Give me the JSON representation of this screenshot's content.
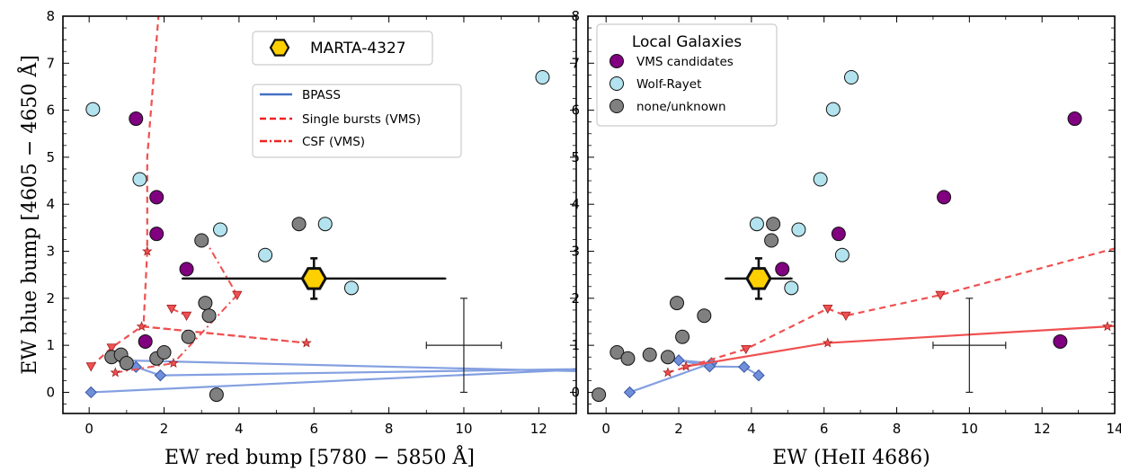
{
  "chart_data": [
    {
      "type": "scatter",
      "xlabel": "EW red bump [5780 − 5850 Å]",
      "ylabel": "EW blue bump [4605 − 4650 Å]",
      "xlim": [
        -0.7,
        13
      ],
      "ylim": [
        -0.45,
        8
      ],
      "xticks": [
        0,
        2,
        4,
        6,
        8,
        10,
        12
      ],
      "yticks": [
        0,
        1,
        2,
        3,
        4,
        5,
        6,
        7,
        8
      ],
      "legend_top": {
        "label": "MARTA-4327"
      },
      "legend_models": [
        {
          "label": "BPASS",
          "style": "solid",
          "color": "#4472c4"
        },
        {
          "label": "Single bursts (VMS)",
          "style": "dashed",
          "color": "#ee2222"
        },
        {
          "label": "CSF (VMS)",
          "style": "dashdot",
          "color": "#ee2222"
        }
      ],
      "series": [
        {
          "name": "VMS candidates",
          "color": "#800080",
          "points": [
            [
              1.25,
              5.82
            ],
            [
              1.8,
              4.15
            ],
            [
              1.8,
              3.37
            ],
            [
              2.6,
              2.62
            ],
            [
              1.5,
              1.08
            ]
          ]
        },
        {
          "name": "Wolf-Rayet",
          "color": "#b3e3ee",
          "points": [
            [
              0.1,
              6.02
            ],
            [
              1.35,
              4.53
            ],
            [
              3.5,
              3.46
            ],
            [
              4.7,
              2.92
            ],
            [
              6.3,
              3.58
            ],
            [
              7.0,
              2.22
            ],
            [
              12.1,
              6.7
            ]
          ]
        },
        {
          "name": "none/unknown",
          "color": "#808080",
          "points": [
            [
              0.6,
              0.75
            ],
            [
              0.85,
              0.8
            ],
            [
              1.0,
              0.62
            ],
            [
              1.8,
              0.72
            ],
            [
              2.0,
              0.85
            ],
            [
              2.65,
              1.18
            ],
            [
              3.1,
              1.9
            ],
            [
              3.2,
              1.63
            ],
            [
              3.4,
              -0.05
            ],
            [
              3.0,
              3.23
            ],
            [
              5.6,
              3.58
            ]
          ]
        }
      ],
      "bpass": [
        [
          0.05,
          0.0
        ],
        [
          13.5,
          0.5
        ],
        [
          1.9,
          0.36
        ],
        [
          1.25,
          0.54
        ],
        [
          0.9,
          0.68
        ],
        [
          13.5,
          0.44
        ]
      ],
      "bpass_markers": [
        [
          0.05,
          0.0
        ],
        [
          1.9,
          0.36
        ],
        [
          1.25,
          0.54
        ],
        [
          0.9,
          0.68
        ]
      ],
      "single_bursts": [
        [
          0.05,
          0.55
        ],
        [
          0.6,
          0.95
        ],
        [
          1.4,
          1.4
        ],
        [
          5.8,
          1.05
        ],
        [
          1.45,
          1.4
        ],
        [
          1.55,
          3.0
        ],
        [
          1.55,
          5.0
        ],
        [
          1.85,
          8.0
        ]
      ],
      "single_bursts_tri": [
        [
          0.05,
          0.55
        ],
        [
          0.6,
          0.95
        ]
      ],
      "single_bursts_star": [
        [
          1.4,
          1.4
        ],
        [
          5.8,
          1.05
        ],
        [
          1.55,
          3.0
        ]
      ],
      "csf": [
        [
          0.7,
          0.42
        ],
        [
          2.25,
          0.62
        ],
        [
          3.95,
          2.07
        ],
        [
          3.1,
          3.23
        ]
      ],
      "csf_tri": [
        [
          2.2,
          1.78
        ],
        [
          2.6,
          1.63
        ],
        [
          3.95,
          2.07
        ]
      ],
      "csf_star": [
        [
          0.7,
          0.42
        ],
        [
          2.25,
          0.62
        ]
      ],
      "csf_connect": [
        [
          2.2,
          1.78
        ],
        [
          2.6,
          1.63
        ]
      ],
      "marta": {
        "x": 6.0,
        "y": 2.42,
        "xerr": [
          3.5,
          3.5
        ],
        "yerr": [
          0.43,
          0.43
        ]
      },
      "error_cross": {
        "x": 10,
        "y": 1.0,
        "xerr": 1.0,
        "yerr": 1.0
      }
    },
    {
      "type": "scatter",
      "xlabel": "EW (HeII 4686)",
      "ylabel": "",
      "xlim": [
        -0.5,
        14
      ],
      "ylim": [
        -0.45,
        8
      ],
      "xticks": [
        0,
        2,
        4,
        6,
        8,
        10,
        12,
        14
      ],
      "yticks": [
        0,
        1,
        2,
        3,
        4,
        5,
        6,
        7,
        8
      ],
      "legend_title": "Local Galaxies",
      "series": [
        {
          "name": "VMS candidates",
          "color": "#800080",
          "points": [
            [
              12.9,
              5.82
            ],
            [
              9.3,
              4.15
            ],
            [
              6.4,
              3.37
            ],
            [
              4.85,
              2.62
            ],
            [
              12.5,
              1.08
            ]
          ]
        },
        {
          "name": "Wolf-Rayet",
          "color": "#b3e3ee",
          "points": [
            [
              6.75,
              6.7
            ],
            [
              6.25,
              6.02
            ],
            [
              5.9,
              4.53
            ],
            [
              4.15,
              3.58
            ],
            [
              5.3,
              3.46
            ],
            [
              6.5,
              2.92
            ],
            [
              5.1,
              2.22
            ]
          ]
        },
        {
          "name": "none/unknown",
          "color": "#808080",
          "points": [
            [
              4.6,
              3.58
            ],
            [
              4.55,
              3.23
            ],
            [
              1.95,
              1.9
            ],
            [
              2.7,
              1.63
            ],
            [
              2.1,
              1.18
            ],
            [
              0.3,
              0.85
            ],
            [
              0.6,
              0.72
            ],
            [
              1.2,
              0.8
            ],
            [
              1.7,
              0.75
            ],
            [
              -0.2,
              -0.05
            ]
          ]
        }
      ],
      "bpass": [
        [
          0.65,
          0.0
        ],
        [
          2.9,
          0.62
        ],
        [
          2.0,
          0.68
        ],
        [
          2.85,
          0.55
        ],
        [
          3.8,
          0.54
        ],
        [
          4.2,
          0.36
        ]
      ],
      "bpass_markers": [
        [
          0.65,
          0.0
        ],
        [
          2.9,
          0.62
        ],
        [
          2.0,
          0.68
        ],
        [
          2.85,
          0.55
        ],
        [
          3.8,
          0.54
        ],
        [
          4.2,
          0.36
        ]
      ],
      "single_bursts": [
        [
          1.7,
          0.42
        ],
        [
          3.85,
          0.92
        ],
        [
          6.1,
          1.78
        ],
        [
          6.6,
          1.63
        ],
        [
          9.2,
          2.07
        ],
        [
          14.2,
          3.1
        ]
      ],
      "single_bursts_tri": [
        [
          3.85,
          0.92
        ],
        [
          6.1,
          1.78
        ],
        [
          6.6,
          1.63
        ],
        [
          9.2,
          2.07
        ]
      ],
      "single_bursts_star": [
        [
          1.7,
          0.42
        ]
      ],
      "csf": [
        [
          2.2,
          0.55
        ],
        [
          6.1,
          1.05
        ],
        [
          13.8,
          1.4
        ],
        [
          14.2,
          1.42
        ]
      ],
      "csf_star": [
        [
          2.2,
          0.55
        ],
        [
          6.1,
          1.05
        ],
        [
          13.8,
          1.4
        ]
      ],
      "marta": {
        "x": 4.2,
        "y": 2.42,
        "xerr": [
          0.9,
          0.9
        ],
        "yerr": [
          0.43,
          0.43
        ]
      },
      "error_cross": {
        "x": 10,
        "y": 1.0,
        "xerr": 1.0,
        "yerr": 1.0
      }
    }
  ]
}
